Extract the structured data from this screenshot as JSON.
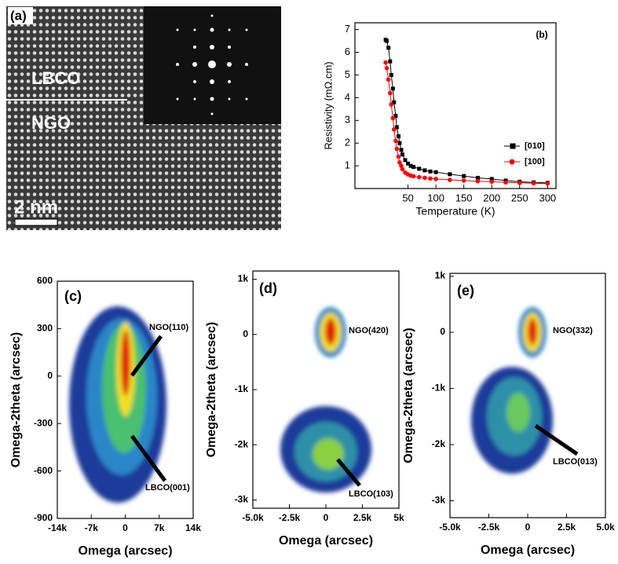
{
  "panel_a": {
    "label": "(a)",
    "layer_top": "LBCO",
    "layer_bottom": "NGO",
    "scale_bar": "2 nm"
  },
  "chart_data": [
    {
      "type": "line",
      "label": "(b)",
      "x_label": "Temperature (K)",
      "y_label": "Resistivity (mΩ.cm)",
      "x": [
        10,
        12,
        15,
        18,
        20,
        23,
        25,
        28,
        30,
        33,
        35,
        38,
        40,
        45,
        50,
        55,
        60,
        70,
        80,
        90,
        100,
        125,
        150,
        175,
        200,
        225,
        250,
        275,
        300
      ],
      "series": [
        {
          "name": "[010]",
          "color": "#000000",
          "marker": "square",
          "values": [
            6.55,
            6.5,
            6.2,
            5.6,
            5.0,
            4.4,
            3.8,
            3.2,
            2.7,
            2.3,
            2.0,
            1.7,
            1.5,
            1.25,
            1.1,
            1.0,
            0.95,
            0.87,
            0.8,
            0.75,
            0.72,
            0.63,
            0.55,
            0.47,
            0.42,
            0.35,
            0.3,
            0.27,
            0.25
          ]
        },
        {
          "name": "[100]",
          "color": "#ff0000",
          "marker": "circle",
          "values": [
            5.55,
            5.3,
            4.8,
            4.2,
            3.7,
            3.1,
            2.6,
            2.1,
            1.75,
            1.4,
            1.15,
            1.0,
            0.85,
            0.7,
            0.62,
            0.57,
            0.54,
            0.5,
            0.47,
            0.44,
            0.42,
            0.38,
            0.35,
            0.32,
            0.3,
            0.27,
            0.25,
            0.23,
            0.22
          ]
        }
      ],
      "xlim": [
        -45,
        315
      ],
      "xticks": [
        50,
        100,
        150,
        200,
        250,
        300
      ],
      "ylim": [
        0,
        7.3
      ],
      "yticks": [
        1,
        2,
        3,
        4,
        5,
        6,
        7
      ],
      "legend": "right"
    },
    {
      "type": "map",
      "label": "(c)",
      "x_label": "Omega (arcsec)",
      "y_label": "Omega-2theta (arcsec)",
      "annotations": [
        "NGO(110)",
        "LBCO(001)"
      ],
      "xlim": [
        -14000,
        14000
      ],
      "xticks": [
        {
          "value": -14000,
          "label": "-14k"
        },
        {
          "value": -7000,
          "label": "-7k"
        },
        0,
        {
          "value": 7000,
          "label": "7k"
        },
        {
          "value": 14000,
          "label": "14k"
        }
      ],
      "ylim": [
        -900,
        600
      ],
      "yticks": [
        600,
        300,
        0,
        -300,
        -600,
        -900
      ]
    },
    {
      "type": "map",
      "label": "(d)",
      "x_label": "Omega (arcsec)",
      "y_label": "Omega-2theta (arcsec)",
      "annotations": [
        "NGO(420)",
        "LBCO(103)"
      ],
      "xlim": [
        -5000,
        5000
      ],
      "xticks": [
        {
          "value": -5000,
          "label": "-5.0k"
        },
        {
          "value": -2500,
          "label": "-2.5k"
        },
        0,
        {
          "value": 2500,
          "label": "2.5k"
        },
        {
          "value": 5000,
          "label": "5k"
        }
      ],
      "ylim": [
        -3150,
        1150
      ],
      "yticks": [
        {
          "value": 1000,
          "label": "1k"
        },
        0,
        {
          "value": -1000,
          "label": "-1k"
        },
        {
          "value": -2000,
          "label": "-2k"
        },
        {
          "value": -3000,
          "label": "-3k"
        }
      ]
    },
    {
      "type": "map",
      "label": "(e)",
      "x_label": "Omega (arcsec)",
      "y_label": "Omega-2theta (arcsec)",
      "annotations": [
        "NGO(332)",
        "LBCO(013)"
      ],
      "xlim": [
        -5000,
        5000
      ],
      "xticks": [
        {
          "value": -5000,
          "label": "-5.0k"
        },
        {
          "value": -2500,
          "label": "-2.5k"
        },
        0,
        {
          "value": 2500,
          "label": "2.5k"
        },
        {
          "value": 5000,
          "label": "5.0k"
        }
      ],
      "ylim": [
        -3300,
        1050
      ],
      "yticks": [
        {
          "value": 1000,
          "label": "1k"
        },
        0,
        {
          "value": -1000,
          "label": "-1k"
        },
        {
          "value": -2000,
          "label": "-2k"
        },
        {
          "value": -3000,
          "label": "-3k"
        }
      ]
    }
  ]
}
